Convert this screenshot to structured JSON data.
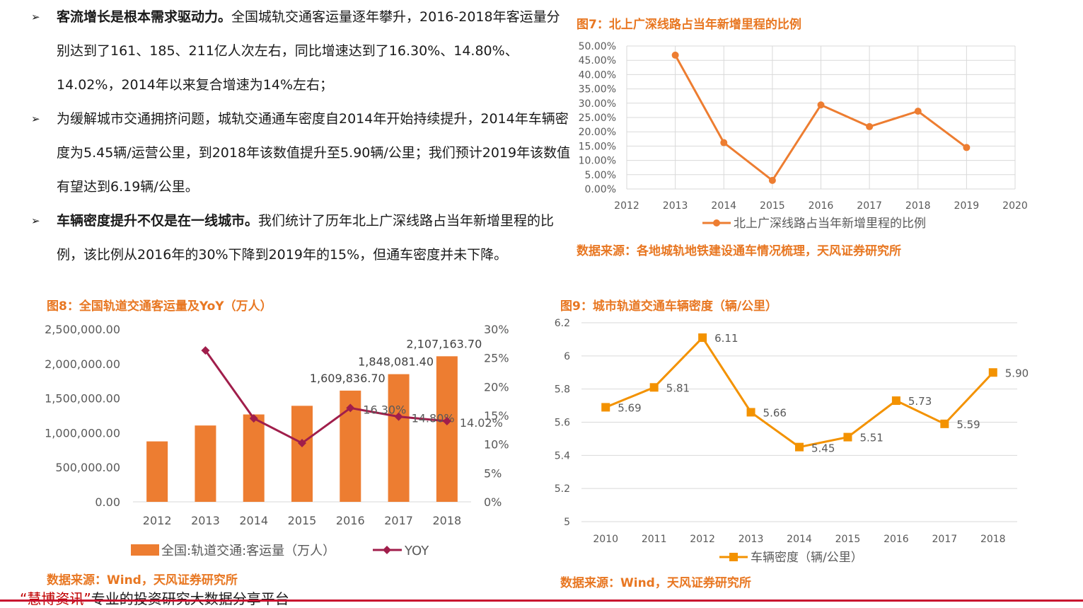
{
  "bullets": [
    {
      "bold": "客流增长是根本需求驱动力。",
      "text": "全国城轨交通客运量逐年攀升，2016-2018年客运量分别达到了161、185、211亿人次左右，同比增速达到了16.30%、14.80%、14.02%，2014年以来复合增速为14%左右；"
    },
    {
      "bold": "",
      "text": "为缓解城市交通拥挤问题，城轨交通通车密度自2014年开始持续提升，2014年车辆密度为5.45辆/运营公里，到2018年该数值提升至5.90辆/公里；我们预计2019年该数值有望达到6.19辆/公里。"
    },
    {
      "bold": "车辆密度提升不仅是在一线城市。",
      "text": "我们统计了历年北上广深线路占当年新增里程的比例，该比例从2016年的30%下降到2019年的15%，但通车密度并未下降。"
    }
  ],
  "bullet_marker": "➢",
  "fig7": {
    "caption": "图7：北上广深线路占当年新增里程的比例",
    "source": "数据来源：各地城轨地铁建设通车情况梳理，天风证券研究所"
  },
  "fig8": {
    "caption": "图8：全国轨道交通客运量及YoY（万人）",
    "source": "数据来源：Wind，天风证券研究所"
  },
  "fig9": {
    "caption": "图9：城市轨道交通车辆密度（辆/公里）",
    "source": "数据来源：Wind，天风证券研究所"
  },
  "footer": {
    "brand": "“慧博资讯”",
    "text": "专业的投资研究大数据分享平台"
  },
  "chart_data": [
    {
      "type": "line",
      "x": [
        2013,
        2014,
        2015,
        2016,
        2017,
        2018,
        2019
      ],
      "series": [
        {
          "name": "北上广深线路占当年新增里程的比例",
          "values": [
            46.8,
            16.2,
            3.0,
            29.4,
            21.8,
            27.2,
            14.5
          ],
          "color": "#ed7d31"
        }
      ],
      "xlim": [
        2012,
        2020
      ],
      "xticks": [
        "2012",
        "2013",
        "2014",
        "2015",
        "2016",
        "2017",
        "2018",
        "2019",
        "2020"
      ],
      "ylim": [
        0,
        50
      ],
      "yticks": [
        "0.00%",
        "5.00%",
        "10.00%",
        "15.00%",
        "20.00%",
        "25.00%",
        "30.00%",
        "35.00%",
        "40.00%",
        "45.00%",
        "50.00%"
      ],
      "grid": true,
      "legend": "bottom"
    },
    {
      "type": "bar",
      "categories": [
        "2012",
        "2013",
        "2014",
        "2015",
        "2016",
        "2017",
        "2018"
      ],
      "series": [
        {
          "name": "全国:轨道交通:客运量（万人）",
          "type": "bar",
          "values": [
            875000,
            1105000,
            1265000,
            1390000,
            1609836.7,
            1848081.4,
            2107163.7
          ],
          "color": "#ed7d31"
        },
        {
          "name": "YOY",
          "type": "line",
          "axis": "right",
          "values": [
            null,
            26.3,
            14.5,
            10.2,
            16.3,
            14.8,
            14.02
          ],
          "color": "#a01e4b"
        }
      ],
      "bar_labels": [
        "",
        "",
        "",
        "",
        "1,609,836.70",
        "1,848,081.40",
        "2,107,163.70"
      ],
      "line_labels": [
        "",
        "",
        "",
        "",
        "16.30%",
        "14.80%",
        "14.02%"
      ],
      "ylim": [
        0,
        2500000
      ],
      "yticks": [
        "0.00",
        "500,000.00",
        "1,000,000.00",
        "1,500,000.00",
        "2,000,000.00",
        "2,500,000.00"
      ],
      "y2lim": [
        0,
        30
      ],
      "y2ticks": [
        "0%",
        "5%",
        "10%",
        "15%",
        "20%",
        "25%",
        "30%"
      ],
      "grid": false,
      "legend": "bottom"
    },
    {
      "type": "line",
      "x": [
        2010,
        2011,
        2012,
        2013,
        2014,
        2015,
        2016,
        2017,
        2018
      ],
      "series": [
        {
          "name": "车辆密度（辆/公里）",
          "values": [
            5.69,
            5.81,
            6.11,
            5.66,
            5.45,
            5.51,
            5.73,
            5.59,
            5.9
          ],
          "color": "#f39200"
        }
      ],
      "labels": [
        "5.69",
        "5.81",
        "6.11",
        "5.66",
        "5.45",
        "5.51",
        "5.73",
        "5.59",
        "5.90"
      ],
      "xticks": [
        "2010",
        "2011",
        "2012",
        "2013",
        "2014",
        "2015",
        "2016",
        "2017",
        "2018"
      ],
      "ylim": [
        5,
        6.2
      ],
      "yticks": [
        "5",
        "5.2",
        "5.4",
        "5.6",
        "5.8",
        "6",
        "6.2"
      ],
      "grid": true,
      "legend": "bottom"
    }
  ]
}
